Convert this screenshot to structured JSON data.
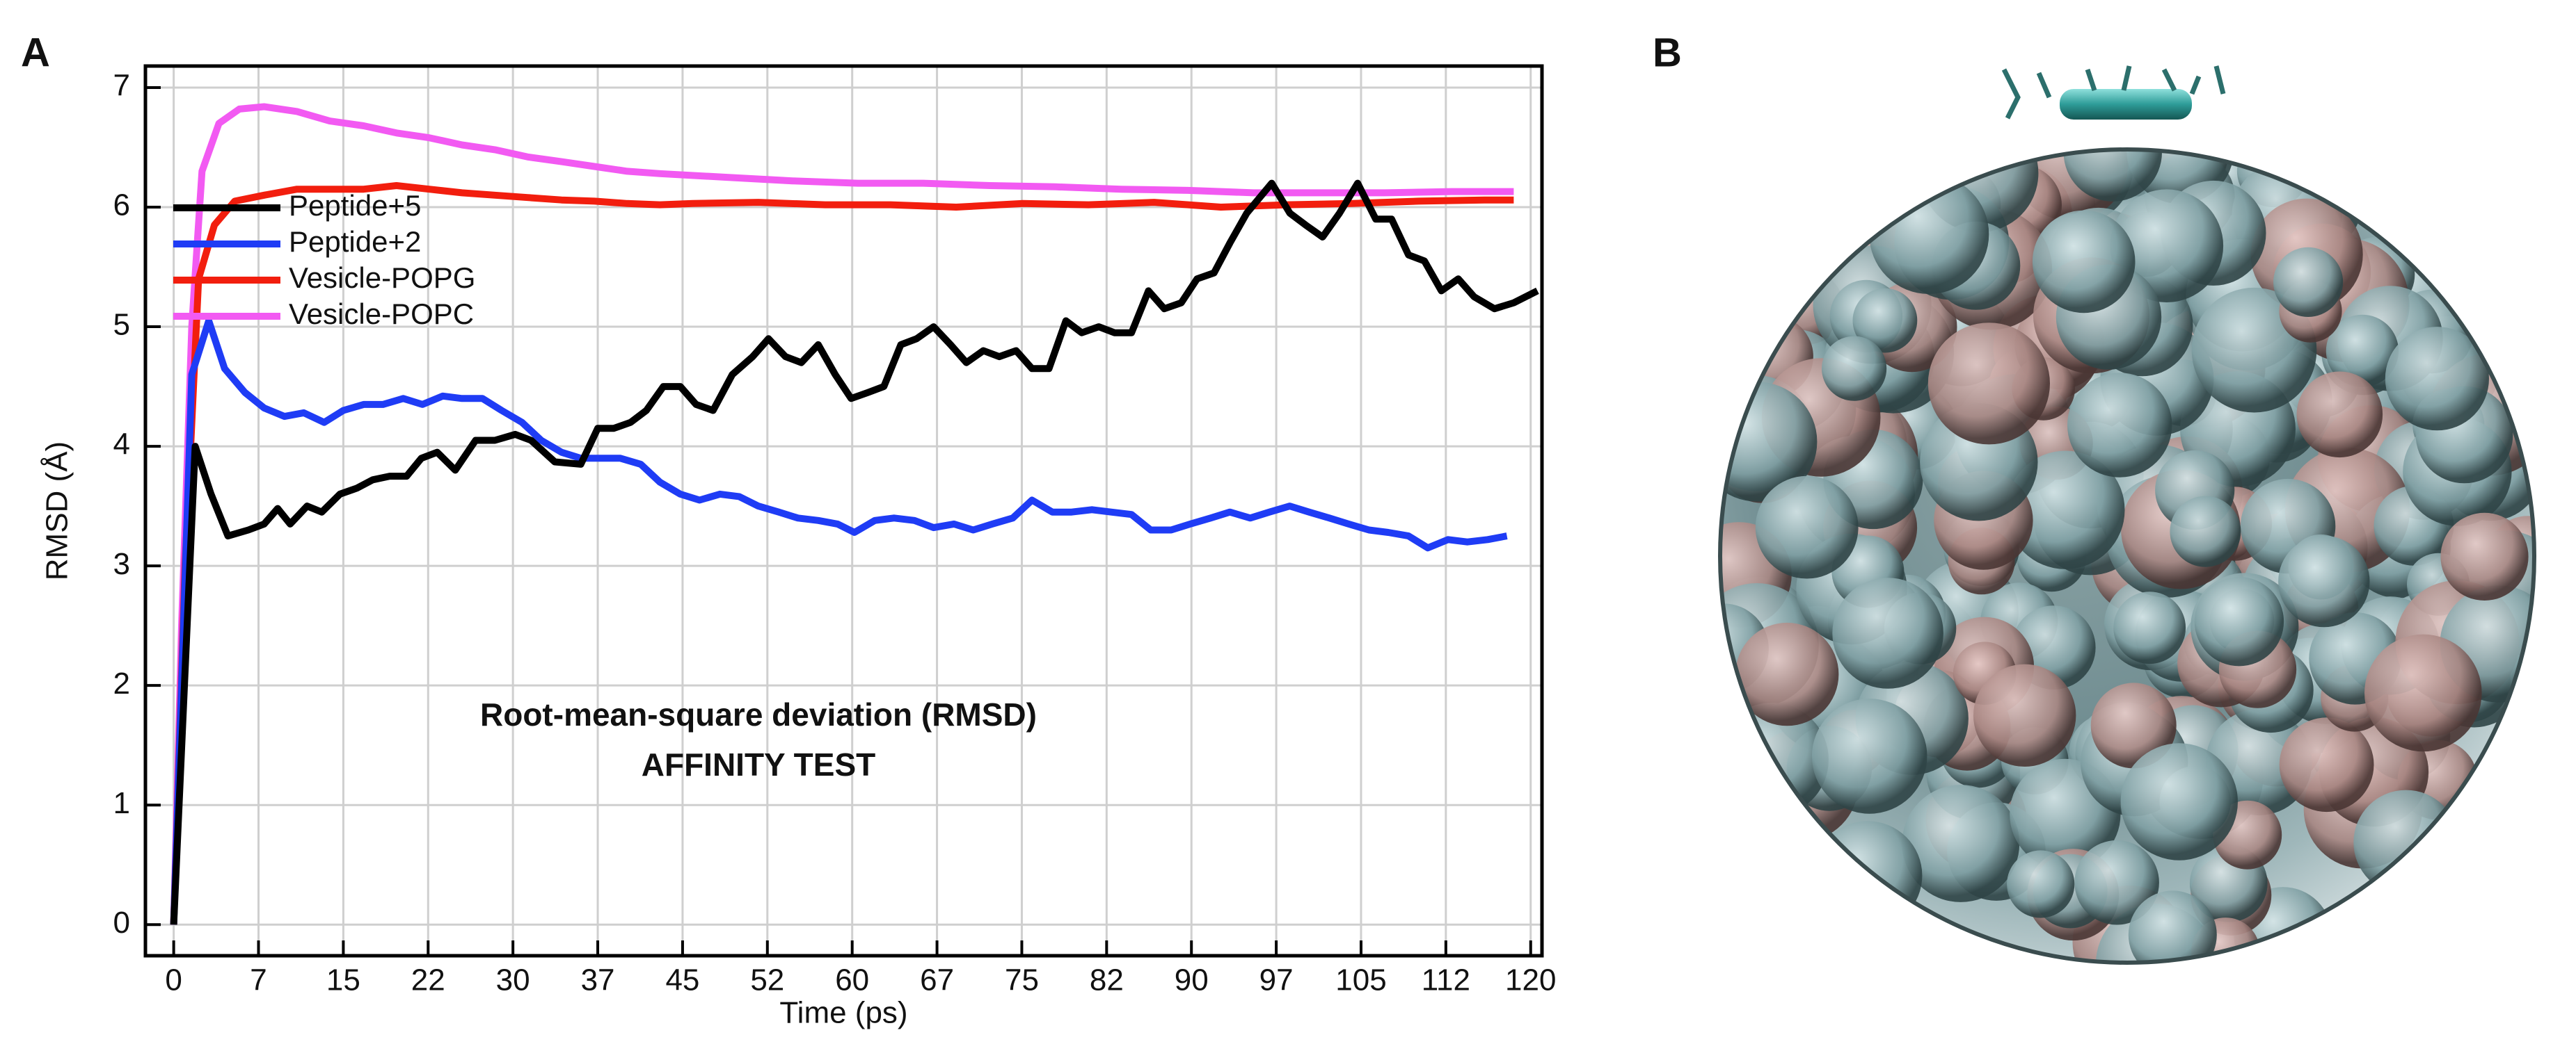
{
  "chart_data": {
    "type": "line",
    "panel_a": "A",
    "panel_b": "B",
    "xlabel": "Time (ps)",
    "ylabel": "RMSD (Å)",
    "annotation": [
      "Root-mean-square deviation (RMSD)",
      "AFFINITY TEST"
    ],
    "xlim": [
      -2.5,
      121
    ],
    "ylim": [
      -0.26,
      7.18
    ],
    "xticks": [
      0,
      {
        "value": 7.5,
        "label": "7"
      },
      15,
      {
        "value": 22.5,
        "label": "22"
      },
      30,
      {
        "value": 37.5,
        "label": "37"
      },
      45,
      {
        "value": 52.5,
        "label": "52"
      },
      60,
      {
        "value": 67.5,
        "label": "67"
      },
      75,
      {
        "value": 82.5,
        "label": "82"
      },
      90,
      {
        "value": 97.5,
        "label": "97"
      },
      105,
      {
        "value": 112.5,
        "label": "112"
      },
      120
    ],
    "yticks": [
      0,
      1,
      2,
      3,
      4,
      5,
      6,
      7
    ],
    "grid": true,
    "legend": "upper left",
    "series": [
      {
        "name": "Peptide+5",
        "color": "#000000",
        "x": [
          0,
          1.9,
          3.3,
          4.8,
          6.6,
          8.0,
          9.2,
          10.3,
          11.8,
          13.1,
          14.7,
          16.2,
          17.6,
          19.1,
          20.6,
          21.9,
          23.3,
          24.9,
          26.7,
          28.4,
          30.2,
          31.6,
          33.7,
          36.0,
          37.5,
          38.9,
          40.4,
          41.8,
          43.3,
          44.8,
          46.2,
          47.7,
          49.4,
          51.2,
          52.6,
          54.1,
          55.5,
          57.0,
          58.5,
          59.9,
          61.4,
          62.8,
          64.3,
          65.7,
          67.2,
          68.7,
          70.1,
          71.6,
          73.0,
          74.5,
          75.9,
          77.4,
          78.9,
          80.3,
          81.8,
          83.2,
          84.7,
          86.2,
          87.6,
          89.1,
          90.5,
          92.0,
          93.4,
          94.9,
          97.1,
          98.7,
          100.1,
          101.6,
          103.1,
          104.7,
          106.3,
          107.7,
          109.2,
          110.6,
          112.1,
          113.6,
          115.0,
          116.8,
          118.5,
          120.6
        ],
        "values": [
          0,
          4.0,
          3.6,
          3.25,
          3.3,
          3.35,
          3.48,
          3.35,
          3.5,
          3.45,
          3.6,
          3.65,
          3.72,
          3.75,
          3.75,
          3.9,
          3.95,
          3.8,
          4.05,
          4.05,
          4.1,
          4.05,
          3.87,
          3.85,
          4.15,
          4.15,
          4.2,
          4.3,
          4.5,
          4.5,
          4.35,
          4.3,
          4.6,
          4.75,
          4.9,
          4.75,
          4.7,
          4.85,
          4.6,
          4.4,
          4.45,
          4.5,
          4.85,
          4.9,
          5.0,
          4.85,
          4.7,
          4.8,
          4.75,
          4.8,
          4.65,
          4.65,
          5.05,
          4.95,
          5.0,
          4.95,
          4.95,
          5.3,
          5.15,
          5.2,
          5.4,
          5.45,
          5.7,
          5.95,
          6.2,
          5.95,
          5.85,
          5.75,
          5.95,
          6.2,
          5.9,
          5.9,
          5.6,
          5.55,
          5.3,
          5.4,
          5.25,
          5.15,
          5.2,
          5.3
        ]
      },
      {
        "name": "Peptide+2",
        "color": "#1f3cf5",
        "x": [
          0,
          1.6,
          3.1,
          4.5,
          6.3,
          8.0,
          9.8,
          11.5,
          13.3,
          15.0,
          16.8,
          18.5,
          20.3,
          22.0,
          23.8,
          25.5,
          27.3,
          29.0,
          30.8,
          32.5,
          34.3,
          36.0,
          37.8,
          39.5,
          41.3,
          43.0,
          44.8,
          46.5,
          48.3,
          50.0,
          51.7,
          53.5,
          55.2,
          57.0,
          58.7,
          60.2,
          62.0,
          63.7,
          65.5,
          67.2,
          69.0,
          70.7,
          72.4,
          74.2,
          75.9,
          77.7,
          79.4,
          81.2,
          82.9,
          84.7,
          86.4,
          88.2,
          89.9,
          91.7,
          93.4,
          95.2,
          96.9,
          98.7,
          100.4,
          102.2,
          103.9,
          105.7,
          107.4,
          109.2,
          110.9,
          112.7,
          114.4,
          116.2,
          117.9
        ],
        "values": [
          0,
          4.6,
          5.05,
          4.65,
          4.45,
          4.32,
          4.25,
          4.28,
          4.2,
          4.3,
          4.35,
          4.35,
          4.4,
          4.35,
          4.42,
          4.4,
          4.4,
          4.3,
          4.2,
          4.05,
          3.95,
          3.9,
          3.9,
          3.9,
          3.85,
          3.7,
          3.6,
          3.55,
          3.6,
          3.58,
          3.5,
          3.45,
          3.4,
          3.38,
          3.35,
          3.28,
          3.38,
          3.4,
          3.38,
          3.32,
          3.35,
          3.3,
          3.35,
          3.4,
          3.55,
          3.45,
          3.45,
          3.47,
          3.45,
          3.43,
          3.3,
          3.3,
          3.35,
          3.4,
          3.45,
          3.4,
          3.45,
          3.5,
          3.45,
          3.4,
          3.35,
          3.3,
          3.28,
          3.25,
          3.15,
          3.22,
          3.2,
          3.22,
          3.25
        ]
      },
      {
        "name": "Vesicle-POPG",
        "color": "#f21e0e",
        "x": [
          0,
          1.0,
          2.2,
          3.6,
          5.4,
          8.0,
          10.9,
          13.8,
          16.8,
          19.7,
          22.6,
          25.5,
          28.4,
          31.3,
          34.3,
          37.2,
          40.1,
          43.0,
          45.9,
          51.7,
          57.6,
          63.4,
          69.2,
          75.1,
          80.9,
          86.7,
          92.6,
          98.4,
          104.2,
          110.1,
          115.9,
          118.5
        ],
        "values": [
          0,
          3.0,
          5.4,
          5.85,
          6.05,
          6.1,
          6.15,
          6.15,
          6.15,
          6.18,
          6.15,
          6.12,
          6.1,
          6.08,
          6.06,
          6.05,
          6.03,
          6.02,
          6.03,
          6.04,
          6.02,
          6.02,
          6.0,
          6.03,
          6.02,
          6.04,
          6.0,
          6.02,
          6.03,
          6.05,
          6.06,
          6.06
        ]
      },
      {
        "name": "Vesicle-POPC",
        "color": "#f25af2",
        "x": [
          0,
          0.7,
          1.6,
          2.5,
          4.0,
          5.8,
          8.0,
          10.9,
          13.8,
          16.8,
          19.7,
          22.6,
          25.5,
          28.4,
          31.3,
          34.3,
          37.2,
          40.1,
          43.0,
          48.8,
          54.7,
          60.5,
          66.3,
          72.2,
          78.0,
          83.8,
          89.7,
          95.5,
          101.3,
          107.1,
          113.0,
          118.5
        ],
        "values": [
          0,
          2.5,
          5.0,
          6.3,
          6.7,
          6.82,
          6.84,
          6.8,
          6.72,
          6.68,
          6.62,
          6.58,
          6.52,
          6.48,
          6.42,
          6.38,
          6.34,
          6.3,
          6.28,
          6.25,
          6.22,
          6.2,
          6.2,
          6.18,
          6.17,
          6.15,
          6.14,
          6.12,
          6.12,
          6.12,
          6.13,
          6.13
        ]
      }
    ]
  }
}
